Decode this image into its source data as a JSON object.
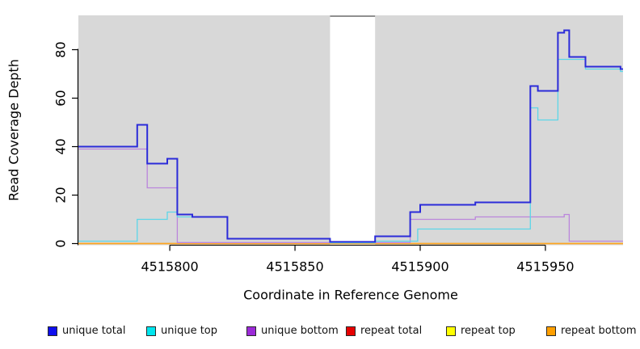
{
  "chart_data": {
    "type": "line",
    "subtype": "step",
    "xlabel": "Coordinate in Reference Genome",
    "ylabel": "Read Coverage Depth",
    "xlim": [
      4515763.5,
      4515981.0
    ],
    "ylim": [
      -0.667,
      94.167
    ],
    "x_ticks": [
      4515800,
      4515850,
      4515900,
      4515950
    ],
    "y_ticks": [
      0,
      20,
      40,
      60,
      80
    ],
    "grid": false,
    "plot_bg": "#d8d8d8",
    "gap_region": {
      "start": 4515864,
      "end": 4515882,
      "fill": "#ffffff",
      "top_border": "#8f8f8f"
    },
    "series": [
      {
        "name": "repeat total",
        "color": "#dc1430",
        "width": 1.2,
        "points": [
          [
            4515763.5,
            0
          ],
          [
            4515981,
            0
          ]
        ]
      },
      {
        "name": "repeat top",
        "color": "#ffef00",
        "width": 1.2,
        "points": [
          [
            4515763.5,
            0
          ],
          [
            4515981,
            0
          ]
        ]
      },
      {
        "name": "repeat bottom",
        "color": "#ffa51f",
        "width": 1.6,
        "points": [
          [
            4515763.5,
            0
          ],
          [
            4515981,
            0
          ]
        ]
      },
      {
        "name": "unique bottom",
        "color": "#bb85dc",
        "width": 1.3,
        "points": [
          [
            4515763.5,
            39
          ],
          [
            4515791,
            23
          ],
          [
            4515803,
            0.4
          ],
          [
            4515896,
            10
          ],
          [
            4515922,
            11
          ],
          [
            4515957.5,
            12
          ],
          [
            4515959.5,
            1
          ],
          [
            4515981,
            1
          ]
        ]
      },
      {
        "name": "unique top",
        "color": "#5cd6e8",
        "width": 1.3,
        "points": [
          [
            4515763.5,
            1
          ],
          [
            4515787,
            10
          ],
          [
            4515799,
            13
          ],
          [
            4515803,
            11
          ],
          [
            4515823,
            2
          ],
          [
            4515864,
            0.3
          ],
          [
            4515882,
            1
          ],
          [
            4515899,
            6
          ],
          [
            4515944,
            56
          ],
          [
            4515947,
            51
          ],
          [
            4515955,
            76
          ],
          [
            4515966,
            72
          ],
          [
            4515980,
            71
          ],
          [
            4515981,
            71
          ]
        ]
      },
      {
        "name": "unique total",
        "color": "#2b2bd9",
        "width": 2.0,
        "points": [
          [
            4515763.5,
            40
          ],
          [
            4515787,
            49
          ],
          [
            4515791,
            33
          ],
          [
            4515799,
            35
          ],
          [
            4515803,
            12
          ],
          [
            4515809,
            11
          ],
          [
            4515823,
            2
          ],
          [
            4515864,
            0.7
          ],
          [
            4515882,
            3
          ],
          [
            4515896,
            13
          ],
          [
            4515900,
            16
          ],
          [
            4515922,
            17
          ],
          [
            4515944,
            65
          ],
          [
            4515947,
            63
          ],
          [
            4515955,
            87
          ],
          [
            4515957.5,
            88
          ],
          [
            4515959.5,
            77
          ],
          [
            4515966,
            73
          ],
          [
            4515980,
            72
          ],
          [
            4515981,
            72
          ]
        ]
      }
    ]
  },
  "legend": {
    "items": [
      {
        "label": "unique total",
        "color": "#0f0fee"
      },
      {
        "label": "unique top",
        "color": "#00e5ee"
      },
      {
        "label": "unique bottom",
        "color": "#9c2ad8"
      },
      {
        "label": "repeat total",
        "color": "#e60000"
      },
      {
        "label": "repeat top",
        "color": "#ffff00"
      },
      {
        "label": "repeat bottom",
        "color": "#ff9f00"
      }
    ]
  }
}
